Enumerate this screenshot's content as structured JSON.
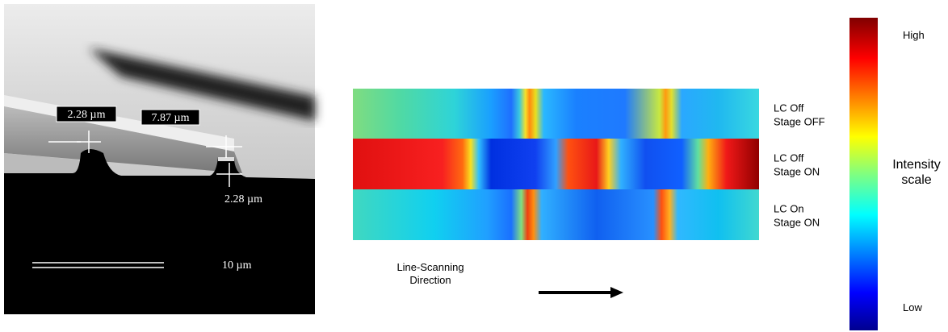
{
  "sem_image": {
    "measurements": [
      "2.28 µm",
      "7.87 µm",
      "2.28 µm"
    ],
    "scale_bar": "10 µm"
  },
  "heatmap": {
    "rows": [
      [
        "LC Off",
        "Stage OFF"
      ],
      [
        "LC Off",
        "Stage ON"
      ],
      [
        "LC On",
        "Stage ON"
      ]
    ],
    "direction": [
      "Line-Scanning",
      "Direction"
    ]
  },
  "colorbar": {
    "high": "High",
    "low": "Low",
    "title": [
      "Intensity",
      "scale"
    ]
  }
}
